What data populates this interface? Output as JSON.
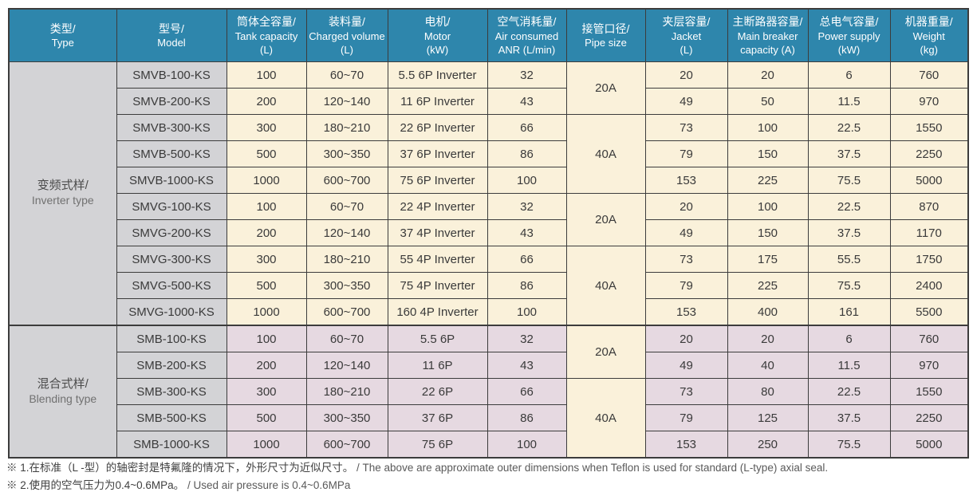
{
  "colors": {
    "header_bg": "#2e86ac",
    "header_text": "#ffffff",
    "type_model_bg": "#d3d3d6",
    "inverter_row_bg": "#faf1da",
    "blending_row_bg": "#e6d9e1",
    "border": "#3c3c3c",
    "cell_text": "#3a3a3a"
  },
  "table": {
    "columns": [
      {
        "id": "type",
        "lines": [
          "类型/",
          "Type"
        ]
      },
      {
        "id": "model",
        "lines": [
          "型号/",
          "Model"
        ]
      },
      {
        "id": "tank",
        "lines": [
          "筒体全容量/",
          "Tank capacity",
          "(L)"
        ]
      },
      {
        "id": "charged",
        "lines": [
          "装料量/",
          "Charged volume",
          "(L)"
        ]
      },
      {
        "id": "motor",
        "lines": [
          "电机/",
          "Motor",
          "(kW)"
        ]
      },
      {
        "id": "air",
        "lines": [
          "空气消耗量/",
          "Air consumed",
          "ANR (L/min)"
        ]
      },
      {
        "id": "pipe",
        "lines": [
          "接管口径/",
          "Pipe size"
        ]
      },
      {
        "id": "jacket",
        "lines": [
          "夹层容量/",
          "Jacket",
          "(L)"
        ]
      },
      {
        "id": "breaker",
        "lines": [
          "主断路器容量/",
          "Main breaker",
          "capacity (A)"
        ]
      },
      {
        "id": "power",
        "lines": [
          "总电气容量/",
          "Power supply",
          "(kW)"
        ]
      },
      {
        "id": "weight",
        "lines": [
          "机器重量/",
          "Weight",
          "(kg)"
        ]
      }
    ],
    "groups": [
      {
        "id": "inverter",
        "type_zh": "变频式样/",
        "type_en": "Inverter type",
        "row_count": 10,
        "theme": "cream"
      },
      {
        "id": "blending",
        "type_zh": "混合式样/",
        "type_en": "Blending type",
        "row_count": 5,
        "theme": "lavender"
      }
    ],
    "pipe_spans": [
      {
        "start": 0,
        "span": 2,
        "value": "20A"
      },
      {
        "start": 2,
        "span": 3,
        "value": "40A"
      },
      {
        "start": 5,
        "span": 2,
        "value": "20A"
      },
      {
        "start": 7,
        "span": 3,
        "value": "40A"
      },
      {
        "start": 10,
        "span": 2,
        "value": "20A"
      },
      {
        "start": 12,
        "span": 3,
        "value": "40A"
      }
    ],
    "rows": [
      {
        "model": "SMVB-100-KS",
        "tank": "100",
        "charged": "60~70",
        "motor": "5.5 6P Inverter",
        "air": "32",
        "jacket": "20",
        "breaker": "20",
        "power": "6",
        "weight": "760"
      },
      {
        "model": "SMVB-200-KS",
        "tank": "200",
        "charged": "120~140",
        "motor": "11 6P Inverter",
        "air": "43",
        "jacket": "49",
        "breaker": "50",
        "power": "11.5",
        "weight": "970"
      },
      {
        "model": "SMVB-300-KS",
        "tank": "300",
        "charged": "180~210",
        "motor": "22 6P Inverter",
        "air": "66",
        "jacket": "73",
        "breaker": "100",
        "power": "22.5",
        "weight": "1550"
      },
      {
        "model": "SMVB-500-KS",
        "tank": "500",
        "charged": "300~350",
        "motor": "37 6P Inverter",
        "air": "86",
        "jacket": "79",
        "breaker": "150",
        "power": "37.5",
        "weight": "2250"
      },
      {
        "model": "SMVB-1000-KS",
        "tank": "1000",
        "charged": "600~700",
        "motor": "75 6P Inverter",
        "air": "100",
        "jacket": "153",
        "breaker": "225",
        "power": "75.5",
        "weight": "5000"
      },
      {
        "model": "SMVG-100-KS",
        "tank": "100",
        "charged": "60~70",
        "motor": "22 4P Inverter",
        "air": "32",
        "jacket": "20",
        "breaker": "100",
        "power": "22.5",
        "weight": "870"
      },
      {
        "model": "SMVG-200-KS",
        "tank": "200",
        "charged": "120~140",
        "motor": "37 4P Inverter",
        "air": "43",
        "jacket": "49",
        "breaker": "150",
        "power": "37.5",
        "weight": "1170"
      },
      {
        "model": "SMVG-300-KS",
        "tank": "300",
        "charged": "180~210",
        "motor": "55 4P Inverter",
        "air": "66",
        "jacket": "73",
        "breaker": "175",
        "power": "55.5",
        "weight": "1750"
      },
      {
        "model": "SMVG-500-KS",
        "tank": "500",
        "charged": "300~350",
        "motor": "75 4P Inverter",
        "air": "86",
        "jacket": "79",
        "breaker": "225",
        "power": "75.5",
        "weight": "2400"
      },
      {
        "model": "SMVG-1000-KS",
        "tank": "1000",
        "charged": "600~700",
        "motor": "160 4P Inverter",
        "air": "100",
        "jacket": "153",
        "breaker": "400",
        "power": "161",
        "weight": "5500"
      },
      {
        "model": "SMB-100-KS",
        "tank": "100",
        "charged": "60~70",
        "motor": "5.5 6P",
        "air": "32",
        "jacket": "20",
        "breaker": "20",
        "power": "6",
        "weight": "760"
      },
      {
        "model": "SMB-200-KS",
        "tank": "200",
        "charged": "120~140",
        "motor": "11 6P",
        "air": "43",
        "jacket": "49",
        "breaker": "40",
        "power": "11.5",
        "weight": "970"
      },
      {
        "model": "SMB-300-KS",
        "tank": "300",
        "charged": "180~210",
        "motor": "22 6P",
        "air": "66",
        "jacket": "73",
        "breaker": "80",
        "power": "22.5",
        "weight": "1550"
      },
      {
        "model": "SMB-500-KS",
        "tank": "500",
        "charged": "300~350",
        "motor": "37 6P",
        "air": "86",
        "jacket": "79",
        "breaker": "125",
        "power": "37.5",
        "weight": "2250"
      },
      {
        "model": "SMB-1000-KS",
        "tank": "1000",
        "charged": "600~700",
        "motor": "75 6P",
        "air": "100",
        "jacket": "153",
        "breaker": "250",
        "power": "75.5",
        "weight": "5000"
      }
    ]
  },
  "footnotes": [
    {
      "zh": "※ 1.在标准（L -型）的轴密封是特氟隆的情况下，外形尺寸为近似尺寸。",
      "en": "/ The above are approximate outer dimensions when Teflon is used for standard (L-type) axial seal."
    },
    {
      "zh": "※ 2.使用的空气压力为0.4~0.6MPa。",
      "en": "/ Used air pressure is 0.4~0.6MPa"
    }
  ]
}
